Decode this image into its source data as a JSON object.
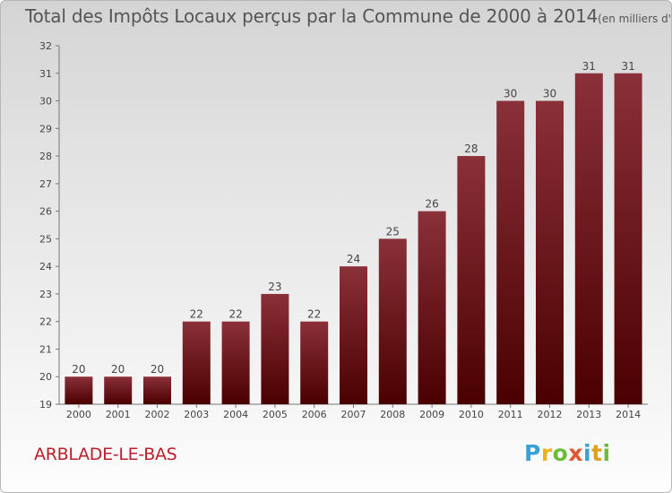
{
  "chart_data": {
    "type": "bar",
    "title": "Total des Impôts Locaux perçus par la Commune de 2000 à 2014",
    "unit_label": "(en milliers d'€)",
    "categories": [
      "2000",
      "2001",
      "2002",
      "2003",
      "2004",
      "2005",
      "2006",
      "2007",
      "2008",
      "2009",
      "2010",
      "2011",
      "2012",
      "2013",
      "2014"
    ],
    "values": [
      20,
      20,
      20,
      22,
      22,
      23,
      22,
      24,
      25,
      26,
      28,
      30,
      30,
      31,
      31
    ],
    "ylim": [
      19,
      32
    ],
    "yticks": [
      19,
      20,
      21,
      22,
      23,
      24,
      25,
      26,
      27,
      28,
      29,
      30,
      31,
      32
    ],
    "grid": false,
    "data_labels": true,
    "colors": {
      "bar_top": "#8a3039",
      "bar_bottom": "#4a0000",
      "text": "#444444",
      "axis": "#777777"
    }
  },
  "footer": {
    "commune": "ARBLADE-LE-BAS",
    "commune_color": "#b8202a",
    "logo": "Proxiti"
  }
}
